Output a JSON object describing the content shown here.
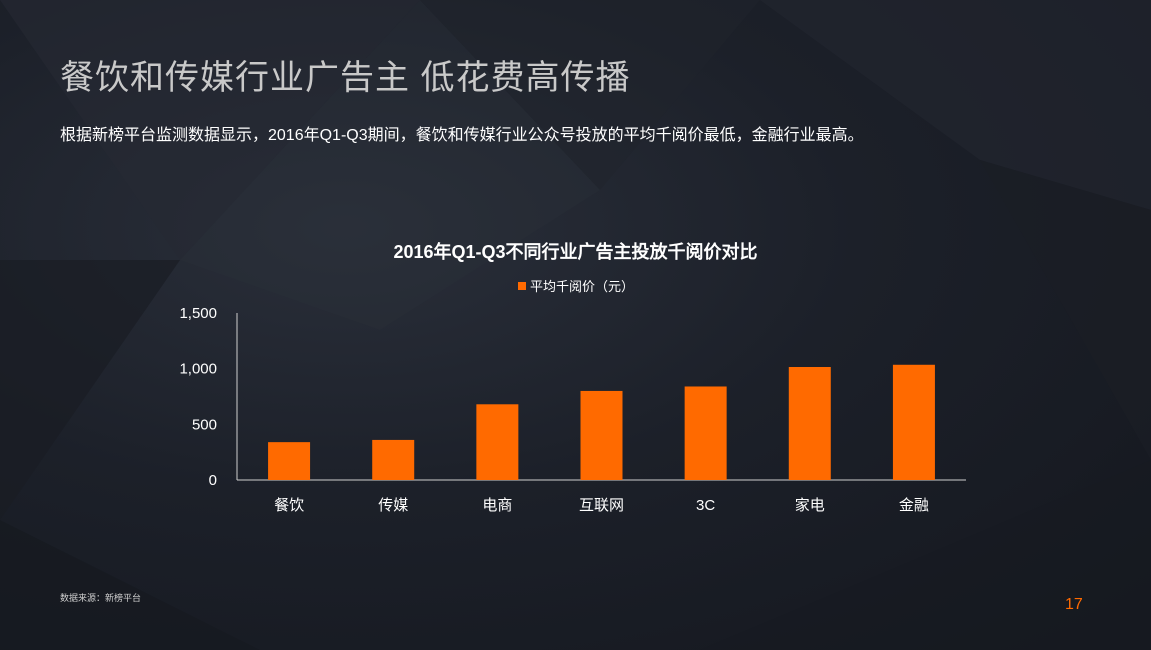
{
  "slide": {
    "title": "餐饮和传媒行业广告主  低花费高传播",
    "subtitle": "根据新榜平台监测数据显示，2016年Q1-Q3期间，餐饮和传媒行业公众号投放的平均千阅价最低，金融行业最高。",
    "source": "数据来源：新榜平台",
    "page_number": "17"
  },
  "chart_data": {
    "type": "bar",
    "title": "2016年Q1-Q3不同行业广告主投放千阅价对比",
    "categories": [
      "餐饮",
      "传媒",
      "电商",
      "互联网",
      "3C",
      "家电",
      "金融"
    ],
    "series": [
      {
        "name": "平均千阅价（元）",
        "values": [
          340,
          360,
          680,
          800,
          840,
          1015,
          1035
        ]
      }
    ],
    "ylim": [
      0,
      1500
    ],
    "yticks": [
      "0",
      "500",
      "1,000",
      "1,500"
    ],
    "ytick_values": [
      0,
      500,
      1000,
      1500
    ],
    "bar_color": "#ff6a00",
    "grid": false,
    "legend_position": "top-center"
  }
}
